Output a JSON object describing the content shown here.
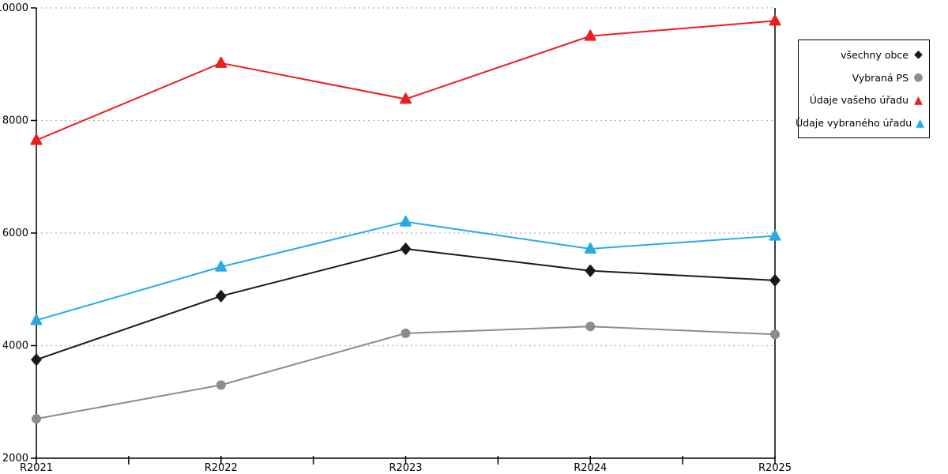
{
  "chart_data": {
    "type": "line",
    "title": "",
    "xlabel": "",
    "ylabel": "",
    "categories": [
      "R2021",
      "R2022",
      "R2023",
      "R2024",
      "R2025"
    ],
    "series": [
      {
        "name": "všechny obce",
        "marker": "diamond",
        "color": "#1a1a1a",
        "values": [
          3750,
          4880,
          5720,
          5330,
          5160
        ]
      },
      {
        "name": "Vybraná PS",
        "marker": "circle",
        "color": "#8c8c8c",
        "values": [
          2700,
          3300,
          4220,
          4340,
          4200
        ]
      },
      {
        "name": "Údaje vašeho úřadu",
        "marker": "triangle",
        "color": "#ee1d1d",
        "values": [
          7650,
          9020,
          8380,
          9500,
          9770
        ]
      },
      {
        "name": "Údaje vybraného úřadu",
        "marker": "triangle",
        "color": "#29abe2",
        "values": [
          4450,
          5400,
          6200,
          5720,
          5950
        ]
      }
    ],
    "ylim": [
      2000,
      10000
    ],
    "y_ticks": [
      2000,
      4000,
      6000,
      8000,
      10000
    ],
    "grid": "dotted-horizontal",
    "legend_position": "outside-right"
  },
  "colors": {
    "axis": "#000000",
    "grid": "#b3b3b3",
    "background": "#ffffff"
  }
}
